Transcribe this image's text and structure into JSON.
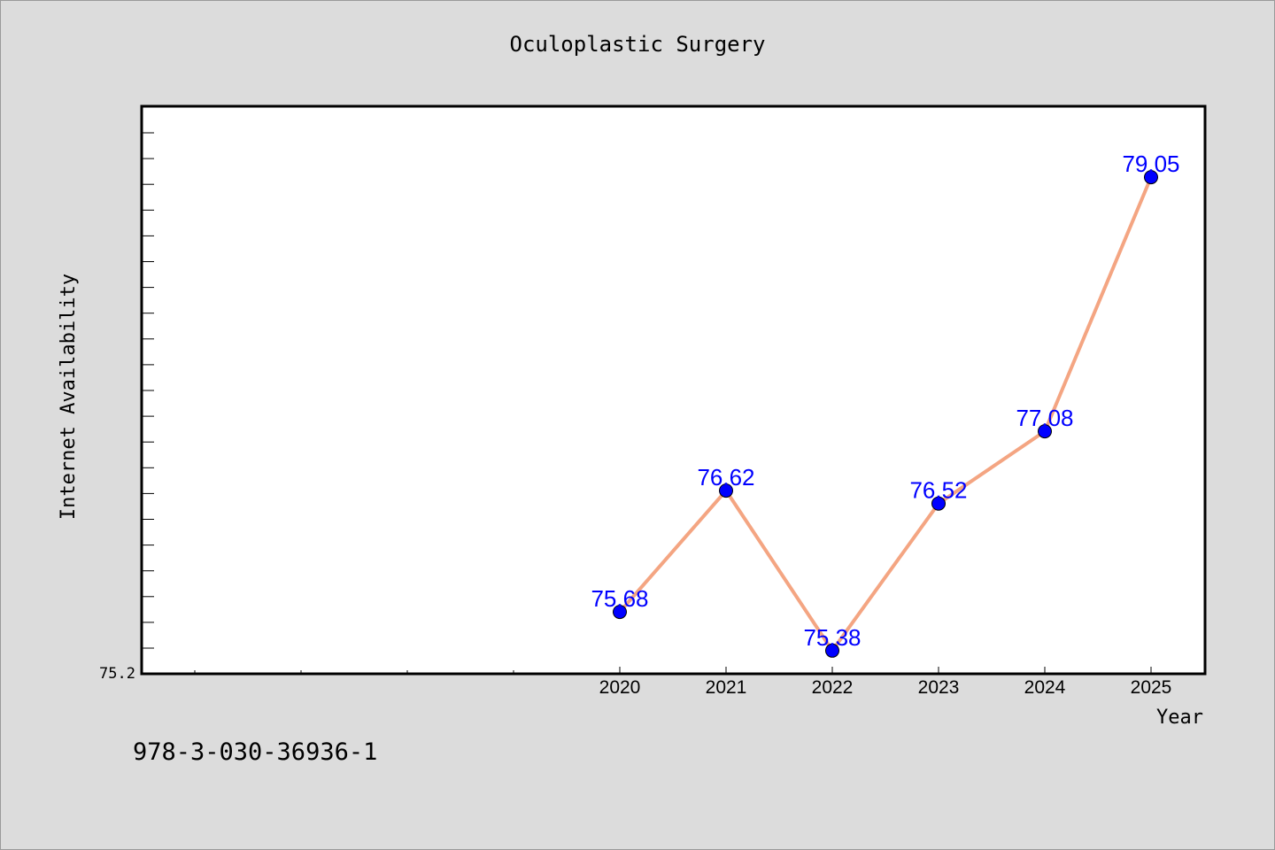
{
  "chart_data": {
    "type": "line",
    "title": "Oculoplastic Surgery",
    "xlabel": "Year",
    "ylabel": "Internet Availability",
    "x": [
      "2020",
      "2021",
      "2022",
      "2023",
      "2024",
      "2025"
    ],
    "series": [
      {
        "values": [
          75.68,
          76.62,
          75.38,
          76.52,
          77.08,
          79.05
        ]
      }
    ],
    "data_labels": [
      "75.68",
      "76.62",
      "75.38",
      "76.52",
      "77.08",
      "79.05"
    ],
    "y_tick_label": "75.2",
    "ylim": [
      75.2,
      79.6
    ],
    "grid": false,
    "legend": "none",
    "colors": {
      "line": "#f4a582",
      "marker": "#0000ff",
      "data_label": "#0000ff",
      "plot_background": "#ffffff",
      "page_background": "#dcdcdc"
    }
  },
  "footer": {
    "code": "978-3-030-36936-1"
  }
}
